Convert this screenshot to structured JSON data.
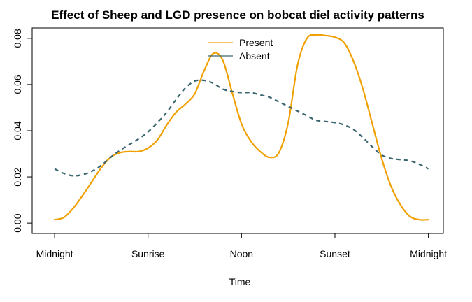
{
  "chart_data": {
    "type": "line",
    "title": "Effect of Sheep and LGD presence on bobcat diel activity patterns",
    "xlabel": "Time",
    "ylabel": "",
    "x_tick_labels": [
      "Midnight",
      "Sunrise",
      "Noon",
      "Sunset",
      "Midnight"
    ],
    "x_tick_values": [
      0,
      0.25,
      0.5,
      0.75,
      1
    ],
    "xlim": [
      -0.06,
      1.04
    ],
    "ylim": [
      -0.0045,
      0.0845
    ],
    "y_ticks": [
      0.0,
      0.02,
      0.04,
      0.06,
      0.08
    ],
    "y_tick_labels": [
      "0.00",
      "0.02",
      "0.04",
      "0.06",
      "0.08"
    ],
    "grid": false,
    "legend_position": "top-center",
    "series": [
      {
        "name": "Present",
        "color": "#f0a000",
        "line_style": "solid",
        "x": [
          0,
          0.025,
          0.05,
          0.075,
          0.1,
          0.125,
          0.15,
          0.175,
          0.2,
          0.225,
          0.25,
          0.275,
          0.3,
          0.325,
          0.35,
          0.375,
          0.4,
          0.425,
          0.45,
          0.475,
          0.5,
          0.525,
          0.55,
          0.575,
          0.6,
          0.625,
          0.65,
          0.675,
          0.7,
          0.725,
          0.75,
          0.775,
          0.8,
          0.825,
          0.85,
          0.875,
          0.9,
          0.925,
          0.95,
          0.975,
          1
        ],
        "values": [
          0.0015,
          0.0025,
          0.0065,
          0.012,
          0.018,
          0.024,
          0.0285,
          0.0305,
          0.031,
          0.031,
          0.0325,
          0.036,
          0.0425,
          0.048,
          0.0515,
          0.056,
          0.066,
          0.0735,
          0.0705,
          0.0565,
          0.043,
          0.0355,
          0.031,
          0.0285,
          0.0305,
          0.0435,
          0.0685,
          0.08,
          0.0815,
          0.0812,
          0.0805,
          0.078,
          0.07,
          0.058,
          0.043,
          0.028,
          0.016,
          0.008,
          0.003,
          0.0015,
          0.0015
        ]
      },
      {
        "name": "Absent",
        "color": "#3a6670",
        "line_style": "dashed",
        "x": [
          0,
          0.025,
          0.05,
          0.075,
          0.1,
          0.125,
          0.15,
          0.175,
          0.2,
          0.225,
          0.25,
          0.275,
          0.3,
          0.325,
          0.35,
          0.375,
          0.4,
          0.425,
          0.45,
          0.475,
          0.5,
          0.525,
          0.55,
          0.575,
          0.6,
          0.625,
          0.65,
          0.675,
          0.7,
          0.725,
          0.75,
          0.775,
          0.8,
          0.825,
          0.85,
          0.875,
          0.9,
          0.925,
          0.95,
          0.975,
          1
        ],
        "values": [
          0.0235,
          0.0215,
          0.0205,
          0.021,
          0.0225,
          0.025,
          0.0285,
          0.0315,
          0.034,
          0.0365,
          0.0395,
          0.0435,
          0.048,
          0.0535,
          0.0585,
          0.0615,
          0.0618,
          0.0605,
          0.058,
          0.057,
          0.0565,
          0.0565,
          0.0555,
          0.0545,
          0.0525,
          0.0505,
          0.0485,
          0.0465,
          0.0445,
          0.044,
          0.0435,
          0.0425,
          0.0405,
          0.037,
          0.033,
          0.0295,
          0.028,
          0.0275,
          0.027,
          0.0255,
          0.0235
        ]
      }
    ]
  }
}
